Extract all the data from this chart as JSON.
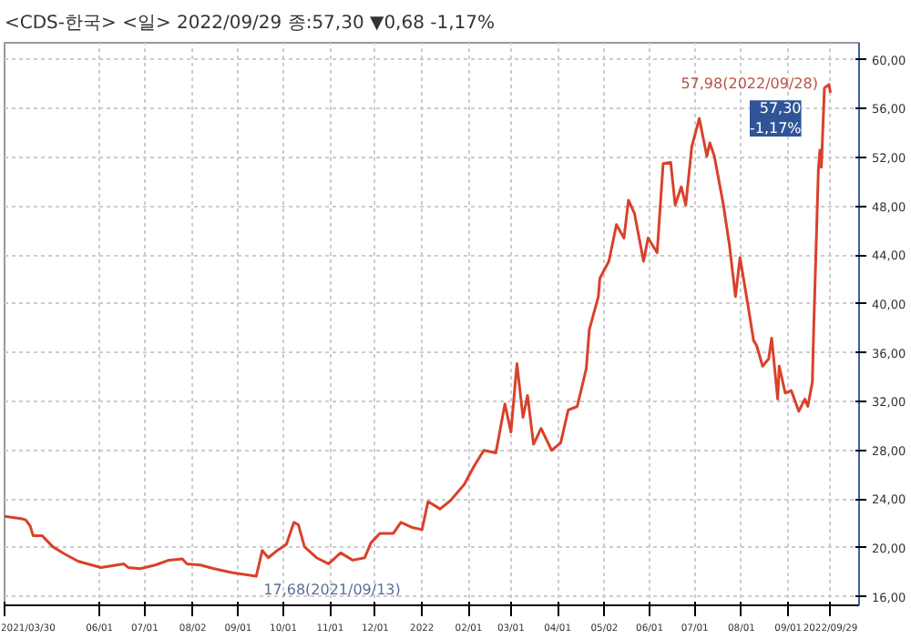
{
  "chart_data": {
    "type": "line",
    "title": "<CDS-한국> <일> 2022/09/29 종:57,30 ▼0,68 -1,17%",
    "x": [
      "2021-03-30",
      "2021-04-10",
      "2021-04-13",
      "2021-04-16",
      "2021-04-18",
      "2021-04-24",
      "2021-05-01",
      "2021-05-09",
      "2021-05-18",
      "2021-06-02",
      "2021-06-17",
      "2021-06-20",
      "2021-06-28",
      "2021-07-08",
      "2021-07-17",
      "2021-07-26",
      "2021-07-29",
      "2021-08-07",
      "2021-08-16",
      "2021-08-27",
      "2021-09-13",
      "2021-09-17",
      "2021-09-21",
      "2021-09-27",
      "2021-10-03",
      "2021-10-08",
      "2021-10-11",
      "2021-10-15",
      "2021-10-23",
      "2021-10-31",
      "2021-11-08",
      "2021-11-16",
      "2021-11-24",
      "2021-11-28",
      "2021-12-04",
      "2021-12-13",
      "2021-12-18",
      "2021-12-25",
      "2022-01-01",
      "2022-01-05",
      "2022-01-13",
      "2022-01-20",
      "2022-01-29",
      "2022-02-05",
      "2022-02-11",
      "2022-02-19",
      "2022-02-25",
      "2022-03-01",
      "2022-03-05",
      "2022-03-09",
      "2022-03-12",
      "2022-03-16",
      "2022-03-21",
      "2022-03-28",
      "2022-04-03",
      "2022-04-08",
      "2022-04-14",
      "2022-04-20",
      "2022-04-22",
      "2022-04-28",
      "2022-04-29",
      "2022-05-05",
      "2022-05-10",
      "2022-05-15",
      "2022-05-18",
      "2022-05-22",
      "2022-05-28",
      "2022-05-31",
      "2022-06-06",
      "2022-06-10",
      "2022-06-15",
      "2022-06-18",
      "2022-06-22",
      "2022-06-25",
      "2022-06-29",
      "2022-07-04",
      "2022-07-09",
      "2022-07-11",
      "2022-07-14",
      "2022-07-20",
      "2022-07-24",
      "2022-07-28",
      "2022-07-31",
      "2022-08-05",
      "2022-08-09",
      "2022-08-11",
      "2022-08-15",
      "2022-08-19",
      "2022-08-21",
      "2022-08-25",
      "2022-08-26",
      "2022-08-30",
      "2022-09-03",
      "2022-09-08",
      "2022-09-12",
      "2022-09-14",
      "2022-09-17",
      "2022-09-18",
      "2022-09-21",
      "2022-09-22",
      "2022-09-23",
      "2022-09-25",
      "2022-09-28",
      "2022-09-29"
    ],
    "series": [
      {
        "color": "#d9412b",
        "values": [
          22.6,
          22.4,
          22.3,
          21.8,
          21.0,
          21.0,
          20.1,
          19.5,
          18.9,
          18.4,
          18.7,
          18.4,
          18.3,
          18.6,
          19.0,
          19.1,
          18.7,
          18.6,
          18.3,
          18.0,
          17.68,
          19.8,
          19.2,
          19.8,
          20.3,
          22.1,
          21.9,
          20.1,
          19.2,
          18.7,
          19.6,
          19.0,
          19.2,
          20.4,
          21.2,
          21.2,
          22.1,
          21.7,
          21.5,
          23.8,
          23.2,
          23.9,
          25.2,
          26.8,
          28.0,
          27.8,
          31.8,
          29.5,
          35.1,
          30.7,
          32.5,
          28.5,
          29.8,
          28.0,
          28.6,
          31.3,
          31.6,
          34.7,
          37.9,
          40.6,
          42.1,
          43.5,
          46.5,
          45.4,
          48.5,
          47.4,
          43.5,
          45.4,
          44.2,
          51.5,
          51.6,
          48.1,
          49.6,
          48.1,
          52.9,
          55.2,
          52.1,
          53.2,
          52.1,
          48.1,
          44.8,
          40.6,
          43.8,
          40.1,
          37.0,
          36.6,
          34.9,
          35.5,
          37.2,
          32.2,
          34.9,
          32.7,
          32.9,
          31.2,
          32.2,
          31.6,
          33.6,
          38.4,
          51.0,
          52.6,
          51.2,
          57.7,
          57.98,
          57.3
        ]
      }
    ],
    "xlim": [
      "2021-03-30",
      "2022-10-18"
    ],
    "xticks": [
      {
        "value": "2021-03-30",
        "label": "2021/03/30"
      },
      {
        "value": "2021-06-01",
        "label": "06/01"
      },
      {
        "value": "2021-07-01",
        "label": "07/01"
      },
      {
        "value": "2021-08-02",
        "label": "08/02"
      },
      {
        "value": "2021-09-01",
        "label": "09/01"
      },
      {
        "value": "2021-10-01",
        "label": "10/01"
      },
      {
        "value": "2021-11-01",
        "label": "11/01"
      },
      {
        "value": "2021-12-01",
        "label": "12/01"
      },
      {
        "value": "2022-01-01",
        "label": "2022"
      },
      {
        "value": "2022-02-01",
        "label": "02/01"
      },
      {
        "value": "2022-03-01",
        "label": "03/01"
      },
      {
        "value": "2022-04-01",
        "label": "04/01"
      },
      {
        "value": "2022-05-02",
        "label": "05/02"
      },
      {
        "value": "2022-06-01",
        "label": "06/01"
      },
      {
        "value": "2022-07-01",
        "label": "07/01"
      },
      {
        "value": "2022-08-01",
        "label": "08/01"
      },
      {
        "value": "2022-09-01",
        "label": "09/01"
      },
      {
        "value": "2022-09-29",
        "label": "2022/09/29"
      }
    ],
    "ylim": [
      15.3,
      61.4
    ],
    "yticks": [
      {
        "value": 16,
        "label": "16,00"
      },
      {
        "value": 20,
        "label": "20,00"
      },
      {
        "value": 24,
        "label": "24,00"
      },
      {
        "value": 28,
        "label": "28,00"
      },
      {
        "value": 32,
        "label": "32,00"
      },
      {
        "value": 36,
        "label": "36,00"
      },
      {
        "value": 40,
        "label": "40,00"
      },
      {
        "value": 44,
        "label": "44,00"
      },
      {
        "value": 48,
        "label": "48,00"
      },
      {
        "value": 52,
        "label": "52,00"
      },
      {
        "value": 56,
        "label": "56,00"
      },
      {
        "value": 60,
        "label": "60,00"
      }
    ],
    "grid": true,
    "line_style": "solid",
    "annotations": [
      {
        "text": "57,98(2022/09/28)",
        "x": "2022-09-28",
        "y": 57.98
      },
      {
        "text": "17,68(2021/09/13)",
        "x": "2021-09-13",
        "y": 17.68
      },
      {
        "text": "57,30\n-1,17%",
        "x": "2022-09-29",
        "y": 57.3
      }
    ]
  }
}
